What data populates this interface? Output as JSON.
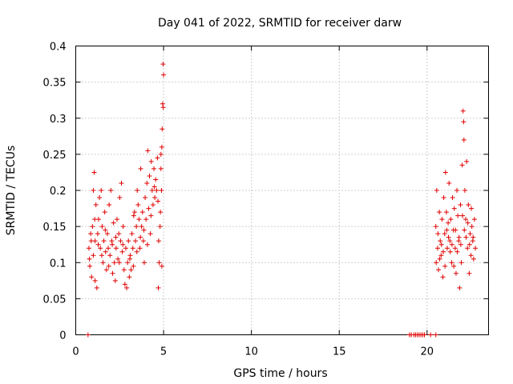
{
  "chart_data": {
    "type": "scatter",
    "title": "Day 041 of 2022, SRMTID for receiver darw",
    "xlabel": "GPS time / hours",
    "ylabel": "SRMTID / TECUs",
    "xlim": [
      0,
      23.5
    ],
    "ylim": [
      0,
      0.4
    ],
    "grid": true,
    "marker": "+",
    "color": "#e00000",
    "x_ticks": [
      0,
      5,
      10,
      15,
      20
    ],
    "x_tick_labels": [
      "0",
      "5",
      "10",
      "15",
      "20"
    ],
    "y_ticks": [
      0,
      0.05,
      0.1,
      0.15,
      0.2,
      0.25,
      0.3,
      0.35,
      0.4
    ],
    "y_tick_labels": [
      "0",
      "0.05",
      "0.1",
      "0.15",
      "0.2",
      "0.25",
      "0.3",
      "0.35",
      "0.4"
    ],
    "series": [
      {
        "name": "SRMTID",
        "points": [
          [
            0.7,
            0.0
          ],
          [
            19.0,
            0.0
          ],
          [
            19.1,
            0.0
          ],
          [
            19.25,
            0.0
          ],
          [
            19.35,
            0.0
          ],
          [
            19.45,
            0.0
          ],
          [
            19.55,
            0.0
          ],
          [
            19.65,
            0.0
          ],
          [
            19.75,
            0.0
          ],
          [
            19.85,
            0.0
          ],
          [
            20.2,
            0.0
          ],
          [
            20.5,
            0.0
          ],
          [
            0.75,
            0.12
          ],
          [
            0.8,
            0.095
          ],
          [
            0.85,
            0.14
          ],
          [
            0.9,
            0.08
          ],
          [
            0.95,
            0.15
          ],
          [
            1.0,
            0.2
          ],
          [
            1.0,
            0.11
          ],
          [
            1.05,
            0.225
          ],
          [
            1.1,
            0.13
          ],
          [
            1.1,
            0.075
          ],
          [
            1.15,
            0.18
          ],
          [
            1.2,
            0.065
          ],
          [
            1.25,
            0.14
          ],
          [
            1.3,
            0.16
          ],
          [
            1.35,
            0.19
          ],
          [
            1.4,
            0.12
          ],
          [
            1.45,
            0.2
          ],
          [
            1.5,
            0.15
          ],
          [
            1.55,
            0.1
          ],
          [
            1.6,
            0.13
          ],
          [
            1.65,
            0.17
          ],
          [
            1.7,
            0.115
          ],
          [
            1.75,
            0.09
          ],
          [
            1.8,
            0.14
          ],
          [
            1.85,
            0.12
          ],
          [
            1.9,
            0.18
          ],
          [
            1.95,
            0.11
          ],
          [
            2.0,
            0.2
          ],
          [
            2.05,
            0.13
          ],
          [
            2.1,
            0.085
          ],
          [
            2.15,
            0.155
          ],
          [
            2.2,
            0.1
          ],
          [
            2.25,
            0.075
          ],
          [
            2.3,
            0.12
          ],
          [
            2.35,
            0.16
          ],
          [
            2.4,
            0.105
          ],
          [
            2.45,
            0.14
          ],
          [
            2.5,
            0.19
          ],
          [
            2.55,
            0.13
          ],
          [
            2.6,
            0.21
          ],
          [
            2.65,
            0.115
          ],
          [
            2.7,
            0.15
          ],
          [
            2.75,
            0.09
          ],
          [
            2.8,
            0.07
          ],
          [
            2.85,
            0.12
          ],
          [
            2.9,
            0.065
          ],
          [
            2.95,
            0.1
          ],
          [
            3.0,
            0.13
          ],
          [
            3.05,
            0.08
          ],
          [
            3.1,
            0.11
          ],
          [
            3.15,
            0.09
          ],
          [
            3.2,
            0.14
          ],
          [
            3.25,
            0.12
          ],
          [
            3.3,
            0.165
          ],
          [
            3.35,
            0.17
          ],
          [
            3.4,
            0.13
          ],
          [
            3.45,
            0.15
          ],
          [
            3.5,
            0.2
          ],
          [
            3.55,
            0.18
          ],
          [
            3.6,
            0.16
          ],
          [
            3.65,
            0.12
          ],
          [
            3.7,
            0.23
          ],
          [
            3.75,
            0.15
          ],
          [
            3.8,
            0.17
          ],
          [
            3.85,
            0.13
          ],
          [
            3.9,
            0.1
          ],
          [
            3.95,
            0.19
          ],
          [
            4.0,
            0.16
          ],
          [
            4.05,
            0.21
          ],
          [
            4.1,
            0.255
          ],
          [
            4.15,
            0.175
          ],
          [
            4.2,
            0.22
          ],
          [
            4.25,
            0.14
          ],
          [
            4.3,
            0.24
          ],
          [
            4.35,
            0.2
          ],
          [
            4.4,
            0.18
          ],
          [
            4.45,
            0.23
          ],
          [
            4.5,
            0.19
          ],
          [
            4.55,
            0.215
          ],
          [
            4.6,
            0.2
          ],
          [
            4.65,
            0.245
          ],
          [
            4.7,
            0.065
          ],
          [
            4.72,
            0.13
          ],
          [
            4.75,
            0.1
          ],
          [
            4.8,
            0.15
          ],
          [
            4.85,
            0.23
          ],
          [
            4.9,
            0.26
          ],
          [
            4.92,
            0.285
          ],
          [
            4.95,
            0.32
          ],
          [
            4.97,
            0.375
          ],
          [
            5.0,
            0.36
          ],
          [
            4.98,
            0.315
          ],
          [
            4.9,
            0.095
          ],
          [
            4.88,
            0.2
          ],
          [
            4.85,
            0.25
          ],
          [
            4.82,
            0.17
          ],
          [
            0.78,
            0.105
          ],
          [
            0.88,
            0.13
          ],
          [
            1.08,
            0.16
          ],
          [
            1.28,
            0.125
          ],
          [
            1.48,
            0.11
          ],
          [
            1.68,
            0.145
          ],
          [
            1.88,
            0.095
          ],
          [
            2.08,
            0.125
          ],
          [
            2.28,
            0.135
          ],
          [
            2.48,
            0.1
          ],
          [
            2.68,
            0.125
          ],
          [
            3.08,
            0.105
          ],
          [
            3.28,
            0.095
          ],
          [
            3.48,
            0.115
          ],
          [
            3.68,
            0.135
          ],
          [
            3.88,
            0.145
          ],
          [
            4.08,
            0.125
          ],
          [
            4.28,
            0.165
          ],
          [
            4.48,
            0.205
          ],
          [
            4.68,
            0.185
          ],
          [
            20.5,
            0.15
          ],
          [
            20.55,
            0.2
          ],
          [
            20.6,
            0.12
          ],
          [
            20.65,
            0.09
          ],
          [
            20.7,
            0.17
          ],
          [
            20.75,
            0.13
          ],
          [
            20.8,
            0.11
          ],
          [
            20.85,
            0.16
          ],
          [
            20.9,
            0.08
          ],
          [
            20.95,
            0.19
          ],
          [
            21.0,
            0.14
          ],
          [
            21.05,
            0.225
          ],
          [
            21.1,
            0.17
          ],
          [
            21.15,
            0.12
          ],
          [
            21.2,
            0.155
          ],
          [
            21.25,
            0.21
          ],
          [
            21.3,
            0.13
          ],
          [
            21.35,
            0.16
          ],
          [
            21.4,
            0.1
          ],
          [
            21.45,
            0.19
          ],
          [
            21.5,
            0.145
          ],
          [
            21.55,
            0.175
          ],
          [
            21.6,
            0.12
          ],
          [
            21.65,
            0.085
          ],
          [
            21.7,
            0.2
          ],
          [
            21.75,
            0.165
          ],
          [
            21.8,
            0.13
          ],
          [
            21.85,
            0.065
          ],
          [
            21.9,
            0.18
          ],
          [
            21.95,
            0.1
          ],
          [
            22.0,
            0.235
          ],
          [
            22.05,
            0.31
          ],
          [
            22.08,
            0.295
          ],
          [
            22.1,
            0.27
          ],
          [
            22.15,
            0.2
          ],
          [
            22.2,
            0.16
          ],
          [
            22.25,
            0.24
          ],
          [
            22.3,
            0.12
          ],
          [
            22.35,
            0.18
          ],
          [
            22.4,
            0.085
          ],
          [
            22.45,
            0.14
          ],
          [
            22.5,
            0.11
          ],
          [
            22.55,
            0.15
          ],
          [
            22.6,
            0.13
          ],
          [
            22.65,
            0.105
          ],
          [
            22.7,
            0.16
          ],
          [
            22.75,
            0.12
          ],
          [
            20.52,
            0.1
          ],
          [
            20.62,
            0.14
          ],
          [
            20.72,
            0.105
          ],
          [
            20.82,
            0.125
          ],
          [
            20.92,
            0.115
          ],
          [
            21.02,
            0.095
          ],
          [
            21.12,
            0.145
          ],
          [
            21.22,
            0.135
          ],
          [
            21.32,
            0.115
          ],
          [
            21.42,
            0.125
          ],
          [
            21.52,
            0.095
          ],
          [
            21.62,
            0.145
          ],
          [
            21.72,
            0.115
          ],
          [
            21.82,
            0.135
          ],
          [
            21.92,
            0.125
          ],
          [
            22.02,
            0.165
          ],
          [
            22.12,
            0.145
          ],
          [
            22.22,
            0.135
          ],
          [
            22.32,
            0.155
          ],
          [
            22.42,
            0.125
          ],
          [
            22.52,
            0.175
          ],
          [
            22.62,
            0.135
          ]
        ]
      }
    ]
  }
}
